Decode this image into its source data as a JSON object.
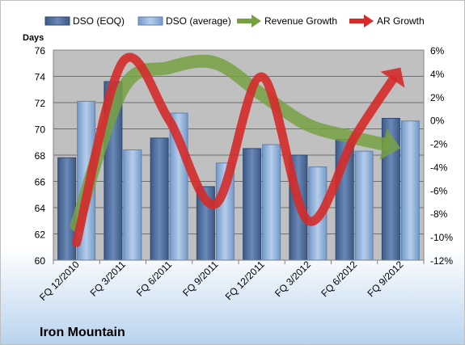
{
  "chart_data": {
    "type": "bar",
    "title": "Iron Mountain",
    "ylabel_left": "Days",
    "categories": [
      "FQ 12/2010",
      "FQ 3/2011",
      "FQ 6/2011",
      "FQ 9/2011",
      "FQ 12/2011",
      "FQ 3/2012",
      "FQ 6/2012",
      "FQ 9/2012"
    ],
    "left_axis": {
      "min": 60,
      "max": 76,
      "step": 2,
      "ticks": [
        "60",
        "62",
        "64",
        "66",
        "68",
        "70",
        "72",
        "74",
        "76"
      ]
    },
    "right_axis": {
      "min": -12,
      "max": 6,
      "step": 2,
      "ticks": [
        "-12%",
        "-10%",
        "-8%",
        "-6%",
        "-4%",
        "-2%",
        "0%",
        "2%",
        "4%",
        "6%"
      ]
    },
    "series": [
      {
        "name": "DSO (EOQ)",
        "kind": "bar",
        "axis": "left",
        "color": "#4f6d9c",
        "values": [
          67.8,
          73.6,
          69.3,
          65.6,
          68.5,
          68.0,
          69.2,
          70.8
        ]
      },
      {
        "name": "DSO (average)",
        "kind": "bar",
        "axis": "left",
        "color": "#8fb0d8",
        "values": [
          72.1,
          68.4,
          71.2,
          67.4,
          68.8,
          67.1,
          68.3,
          70.6
        ]
      },
      {
        "name": "Revenue Growth",
        "kind": "line",
        "axis": "right",
        "color": "#77a043",
        "values": [
          -9.0,
          2.7,
          4.5,
          4.9,
          2.2,
          -0.4,
          -1.5,
          -2.4
        ]
      },
      {
        "name": "AR Growth",
        "kind": "line",
        "axis": "right",
        "color": "#d42b2b",
        "values": [
          -10.5,
          5.0,
          0.0,
          -7.2,
          3.7,
          -8.6,
          -1.5,
          4.5
        ]
      }
    ],
    "grid": true,
    "legend_position": "top"
  },
  "colors": {
    "plot_background": "#c0c0c0",
    "page_gradient_top": "#ffffff",
    "page_gradient_bottom": "#b9d3ee",
    "border": "#bfbfbf"
  }
}
